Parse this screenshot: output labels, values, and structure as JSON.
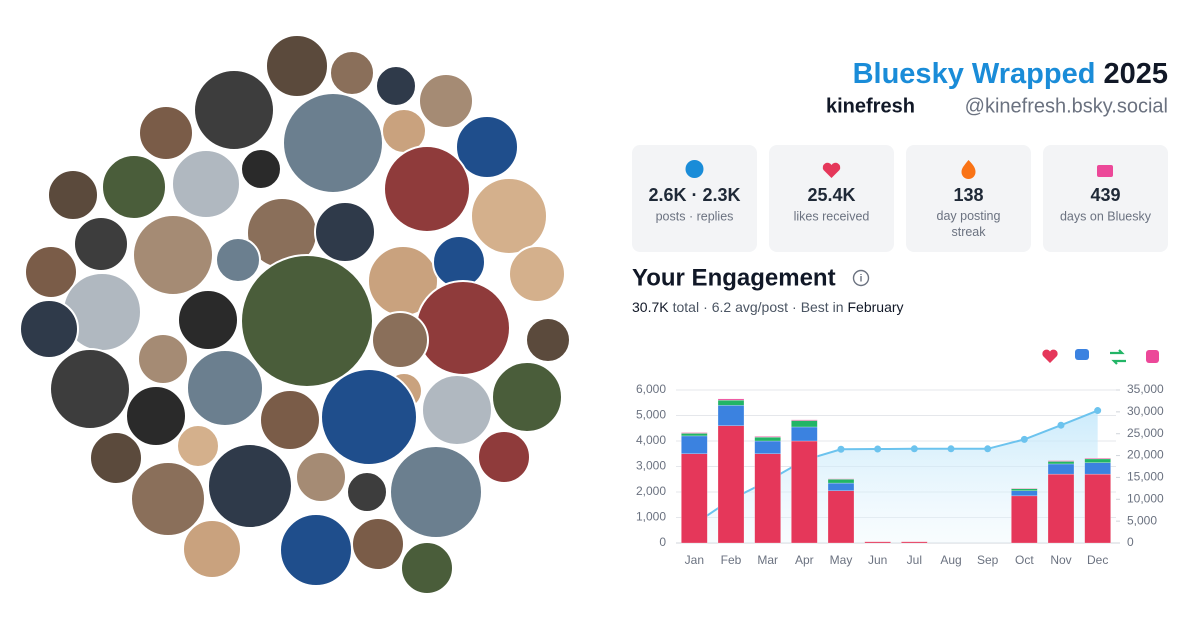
{
  "header": {
    "title": "Bluesky Wrapped",
    "year": "2025",
    "name": "kinefresh",
    "handle": "@kinefresh.bsky.social"
  },
  "stats": [
    {
      "value": "2.6K · 2.3K",
      "label": "posts · replies"
    },
    {
      "value": "25.4K",
      "label": "likes received"
    },
    {
      "value": "138",
      "label": "day posting streak"
    },
    {
      "value": "439",
      "label": "days on Bluesky"
    }
  ],
  "engagement": {
    "title": "Your Engagement",
    "total": "30.7K",
    "total_label": "total",
    "avg": "6.2 avg/post",
    "best_label": "Best in",
    "best": "February"
  },
  "chart_data": {
    "type": "bar",
    "categories": [
      "Jan",
      "Feb",
      "Mar",
      "Apr",
      "May",
      "Jun",
      "Jul",
      "Aug",
      "Sep",
      "Oct",
      "Nov",
      "Dec"
    ],
    "series": [
      {
        "color": "#e5375a",
        "values": [
          3500,
          4600,
          3500,
          4000,
          2050,
          50,
          50,
          0,
          0,
          1850,
          2700,
          2700
        ]
      },
      {
        "color": "#3b82e0",
        "values": [
          700,
          800,
          500,
          550,
          300,
          0,
          0,
          0,
          0,
          200,
          400,
          450
        ]
      },
      {
        "color": "#22b566",
        "values": [
          100,
          200,
          150,
          250,
          150,
          0,
          0,
          0,
          0,
          80,
          100,
          150
        ]
      },
      {
        "color": "#ec4899",
        "values": [
          30,
          50,
          30,
          30,
          20,
          0,
          0,
          0,
          0,
          20,
          30,
          30
        ]
      },
      {
        "type": "line",
        "axis": "y2",
        "color": "#6cc3ee",
        "values": [
          4300,
          9950,
          14150,
          18950,
          21450,
          21500,
          21550,
          21550,
          21550,
          23700,
          26950,
          30300
        ]
      }
    ],
    "ylim": [
      0,
      6000
    ],
    "yticks": [
      0,
      {
        "value": 1000,
        "label": "1,000"
      },
      {
        "value": 2000,
        "label": "2,000"
      },
      {
        "value": 3000,
        "label": "3,000"
      },
      {
        "value": 4000,
        "label": "4,000"
      },
      {
        "value": 5000,
        "label": "5,000"
      },
      {
        "value": 6000,
        "label": "6,000"
      }
    ],
    "y2lim": [
      0,
      35000
    ],
    "y2ticks": [
      0,
      {
        "value": 5000,
        "label": "5,000"
      },
      {
        "value": 10000,
        "label": "10,000"
      },
      {
        "value": 15000,
        "label": "15,000"
      },
      {
        "value": 20000,
        "label": "20,000"
      },
      {
        "value": 25000,
        "label": "25,000"
      },
      {
        "value": 30000,
        "label": "30,000"
      },
      {
        "value": 35000,
        "label": "35,000"
      }
    ],
    "grid": true
  }
}
